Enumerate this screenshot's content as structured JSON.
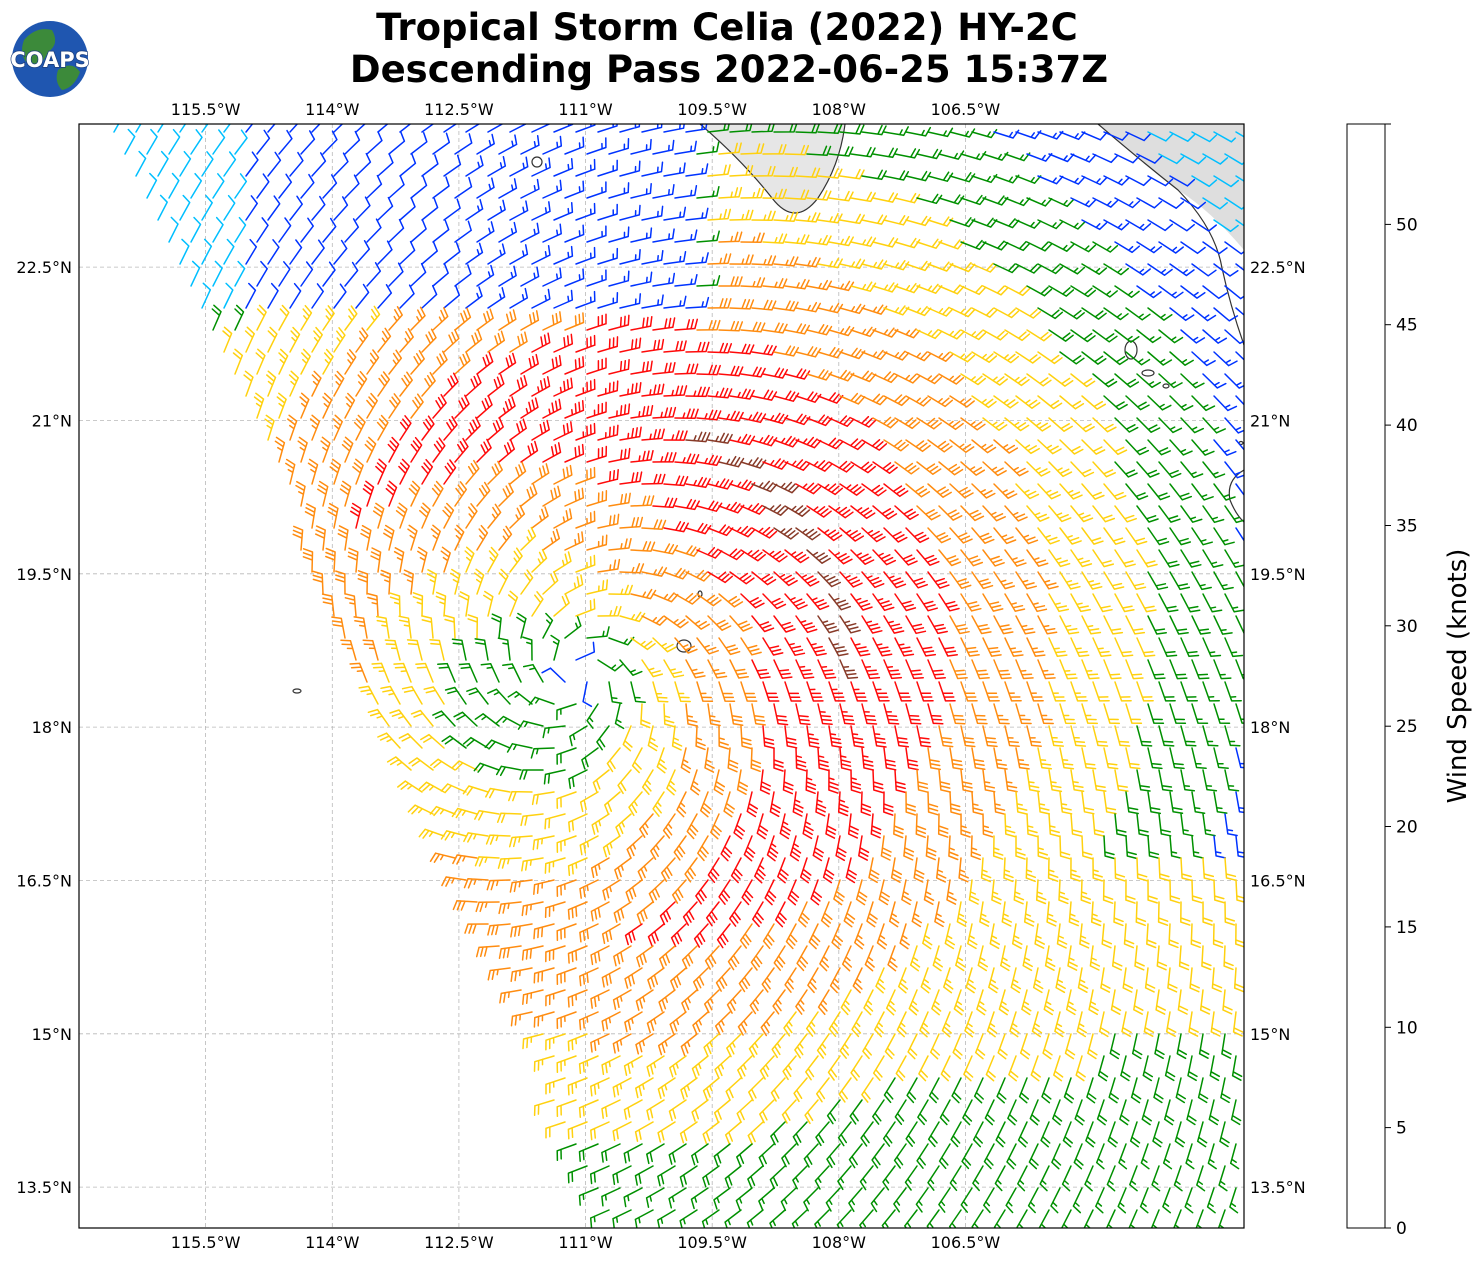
{
  "title": {
    "line1": "Tropical Storm Celia (2022) HY-2C",
    "line2": "Descending Pass 2022-06-25 15:37Z"
  },
  "logo": {
    "text": "COAPS"
  },
  "map": {
    "lon_range": [
      -117,
      -103.2
    ],
    "lat_range": [
      13.1,
      23.9
    ],
    "lon_ticks": [
      -115.5,
      -114,
      -112.5,
      -111,
      -109.5,
      -108,
      -106.5
    ],
    "lon_tick_labels": [
      "115.5°W",
      "114°W",
      "112.5°W",
      "111°W",
      "109.5°W",
      "108°W",
      "106.5°W"
    ],
    "lat_ticks": [
      13.5,
      15,
      16.5,
      18,
      19.5,
      21,
      22.5
    ],
    "lat_tick_labels": [
      "13.5°N",
      "15°N",
      "16.5°N",
      "18°N",
      "19.5°N",
      "21°N",
      "22.5°N"
    ],
    "gridlines": true,
    "storm_center": {
      "lon": -111.1,
      "lat": 18.5
    },
    "colors": {
      "frame": "#000000",
      "grid": "#b8b8b8",
      "coast": "#333333",
      "terrain": "#c8c8c8"
    }
  },
  "colorbar": {
    "label": "Wind Speed (knots)",
    "ticks": [
      0,
      5,
      10,
      15,
      20,
      25,
      30,
      35,
      40,
      45,
      50
    ],
    "tick_labels": [
      "0",
      "5",
      "10",
      "15",
      "20",
      "25",
      "30",
      "35",
      "40",
      "45",
      "50"
    ],
    "bins": [
      {
        "min": 0,
        "max": 5,
        "color": "#555555"
      },
      {
        "min": 5,
        "max": 10,
        "color": "#00bfff"
      },
      {
        "min": 10,
        "max": 15,
        "color": "#0033ff"
      },
      {
        "min": 15,
        "max": 20,
        "color": "#009000"
      },
      {
        "min": 20,
        "max": 25,
        "color": "#ffd10f"
      },
      {
        "min": 25,
        "max": 30,
        "color": "#ff8c10"
      },
      {
        "min": 30,
        "max": 35,
        "color": "#ff0a0a"
      },
      {
        "min": 35,
        "max": 40,
        "color": "#883a28"
      },
      {
        "min": 40,
        "max": 45,
        "color": "#ff00ff"
      },
      {
        "min": 45,
        "max": 50,
        "color": "#8800b0"
      },
      {
        "min": 50,
        "max": 55,
        "color": "#2b0055"
      }
    ]
  }
}
